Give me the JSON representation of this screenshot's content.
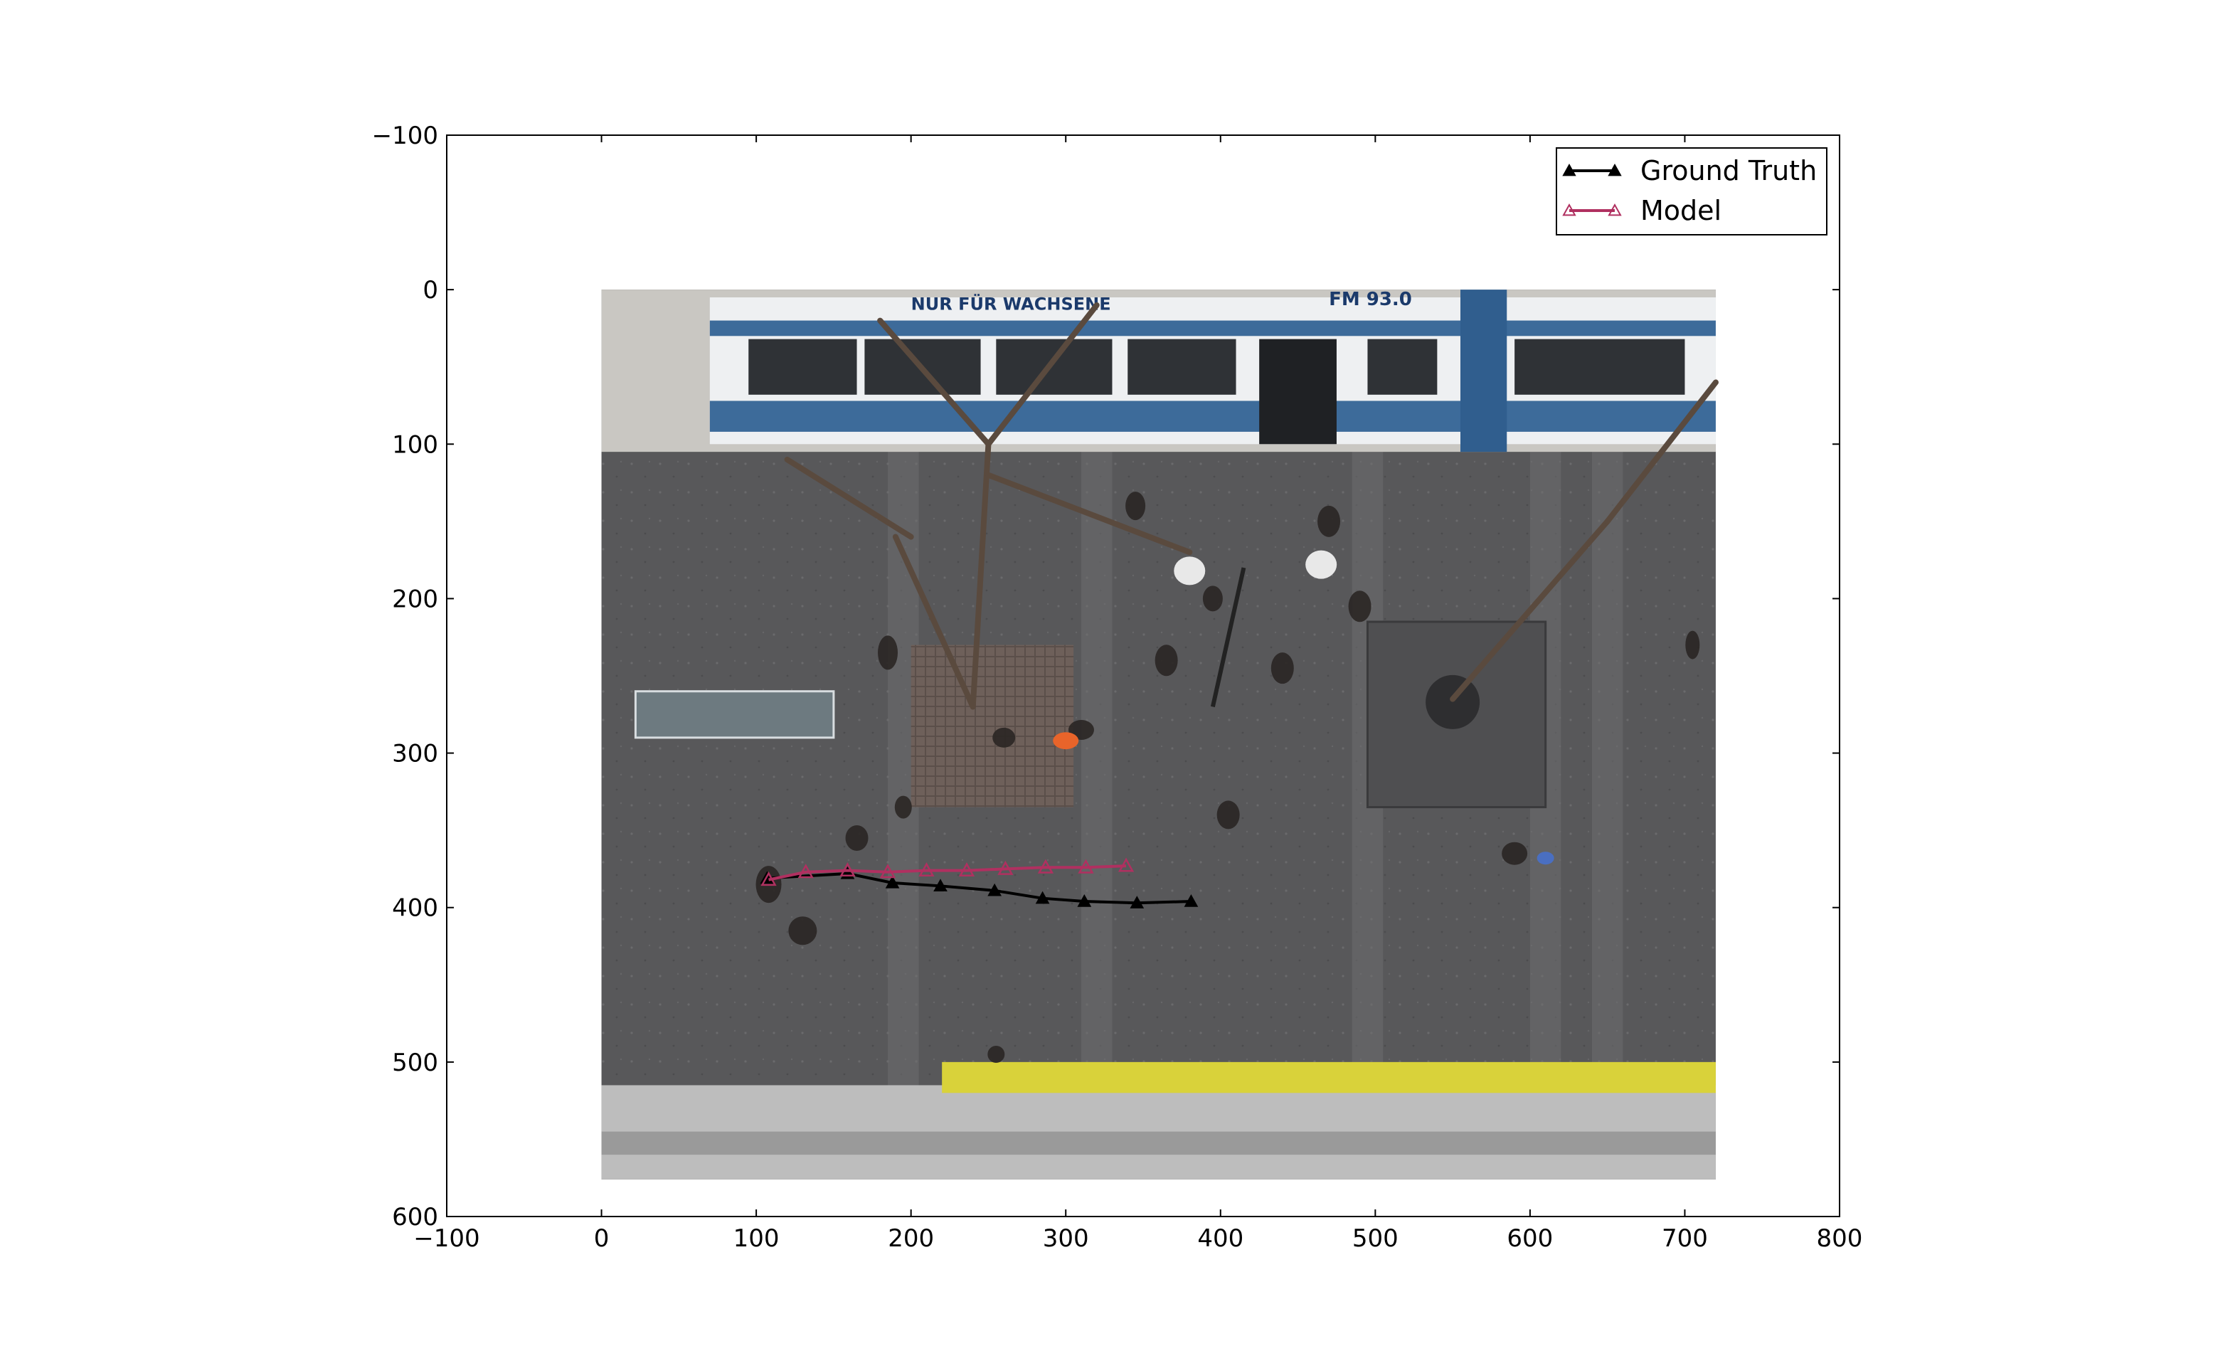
{
  "chart_data": {
    "type": "line",
    "title": "",
    "xlabel": "",
    "ylabel": "",
    "xlim": [
      -100,
      800
    ],
    "ylim": [
      600,
      -100
    ],
    "y_inverted": true,
    "xticks": [
      -100,
      0,
      100,
      200,
      300,
      400,
      500,
      600,
      700,
      800
    ],
    "yticks": [
      -100,
      0,
      100,
      200,
      300,
      400,
      500,
      600
    ],
    "xtick_labels": [
      "−100",
      "0",
      "100",
      "200",
      "300",
      "400",
      "500",
      "600",
      "700",
      "800"
    ],
    "ytick_labels": [
      "−100",
      "0",
      "100",
      "200",
      "300",
      "400",
      "500",
      "600"
    ],
    "grid": false,
    "legend_position": "top-right",
    "background_image": {
      "description": "overhead street scene with tram, trees and pedestrians",
      "extent_x": [
        0,
        720
      ],
      "extent_y": [
        0,
        576
      ]
    },
    "series": [
      {
        "name": "Ground Truth",
        "color": "#000000",
        "marker": "triangle-filled",
        "x": [
          107,
          159,
          188,
          219,
          254,
          285,
          312,
          346,
          381
        ],
        "y": [
          381,
          378,
          384,
          386,
          389,
          394,
          396,
          397,
          396
        ]
      },
      {
        "name": "Model",
        "color": "#b03060",
        "marker": "triangle-open",
        "x": [
          108,
          132,
          159,
          185,
          210,
          236,
          261,
          287,
          313,
          339
        ],
        "y": [
          382,
          377,
          376,
          377,
          376,
          376,
          375,
          374,
          374,
          373
        ]
      }
    ]
  }
}
